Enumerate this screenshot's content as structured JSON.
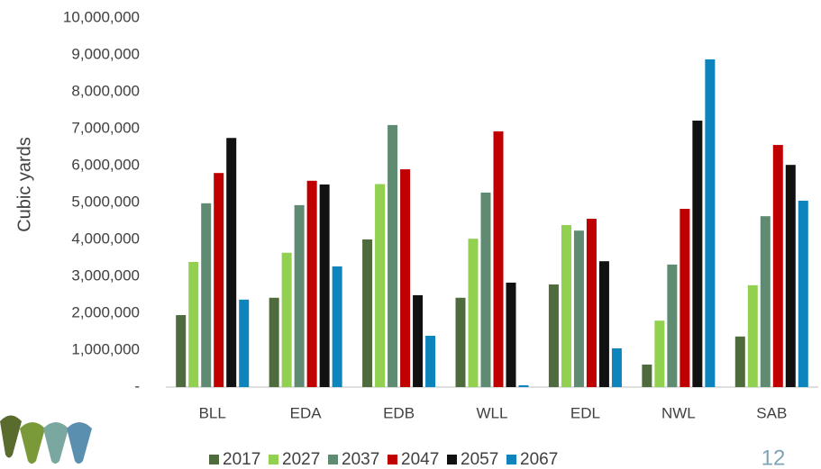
{
  "chart_data": {
    "type": "bar",
    "y_label": "Cubic yards",
    "categories": [
      "BLL",
      "EDA",
      "EDB",
      "WLL",
      "EDL",
      "NWL",
      "SAB"
    ],
    "series": [
      {
        "name": "2017",
        "color": "#4e6b3d",
        "values": [
          1950000,
          2420000,
          4000000,
          2420000,
          2780000,
          610000,
          1370000
        ]
      },
      {
        "name": "2027",
        "color": "#92d050",
        "values": [
          3390000,
          3640000,
          5500000,
          4020000,
          4390000,
          1800000,
          2760000
        ]
      },
      {
        "name": "2037",
        "color": "#5f8b72",
        "values": [
          4980000,
          4930000,
          7100000,
          5270000,
          4240000,
          3320000,
          4630000
        ]
      },
      {
        "name": "2047",
        "color": "#c00000",
        "values": [
          5800000,
          5590000,
          5900000,
          6930000,
          4560000,
          4830000,
          6560000
        ]
      },
      {
        "name": "2057",
        "color": "#111111",
        "values": [
          6750000,
          5490000,
          2490000,
          2830000,
          3410000,
          7220000,
          6020000
        ]
      },
      {
        "name": "2067",
        "color": "#0e84bd",
        "values": [
          2370000,
          3270000,
          1390000,
          50000,
          1050000,
          8880000,
          5050000
        ]
      }
    ],
    "ylim": [
      0,
      10000000
    ],
    "yticks": [
      {
        "value": 0,
        "label": "-"
      },
      {
        "value": 1000000,
        "label": "1,000,000"
      },
      {
        "value": 2000000,
        "label": "2,000,000"
      },
      {
        "value": 3000000,
        "label": "3,000,000"
      },
      {
        "value": 4000000,
        "label": "4,000,000"
      },
      {
        "value": 5000000,
        "label": "5,000,000"
      },
      {
        "value": 6000000,
        "label": "6,000,000"
      },
      {
        "value": 7000000,
        "label": "7,000,000"
      },
      {
        "value": 8000000,
        "label": "8,000,000"
      },
      {
        "value": 9000000,
        "label": "9,000,000"
      },
      {
        "value": 10000000,
        "label": "10,000,000"
      }
    ],
    "grid": false,
    "legend": "bottom"
  },
  "slide": {
    "page_number": "12"
  }
}
